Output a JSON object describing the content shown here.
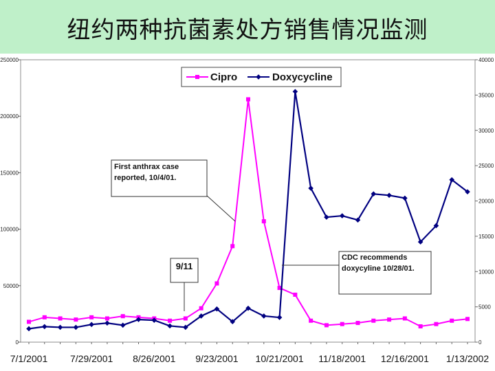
{
  "slide": {
    "title": "纽约两种抗菌素处方销售情况监测",
    "title_band_color": "#bff0c9"
  },
  "chart_data": {
    "type": "line",
    "x_tick_labels": [
      "7/1/2001",
      "7/29/2001",
      "8/26/2001",
      "9/23/2001",
      "10/21/2001",
      "11/18/2001",
      "12/16/2001",
      "1/13/2002"
    ],
    "y_left": {
      "ylim": [
        0,
        250000
      ],
      "ticks": [
        0,
        50000,
        100000,
        150000,
        200000,
        250000
      ]
    },
    "y_right": {
      "ylim": [
        0,
        40000
      ],
      "ticks": [
        0,
        5000,
        10000,
        15000,
        20000,
        25000,
        30000,
        35000,
        40000
      ]
    },
    "x_dates": [
      "7/1/2001",
      "7/8/2001",
      "7/15/2001",
      "7/22/2001",
      "7/29/2001",
      "8/5/2001",
      "8/12/2001",
      "8/19/2001",
      "8/26/2001",
      "9/2/2001",
      "9/9/2001",
      "9/16/2001",
      "9/23/2001",
      "9/30/2001",
      "10/7/2001",
      "10/14/2001",
      "10/21/2001",
      "10/28/2001",
      "11/4/2001",
      "11/11/2001",
      "11/18/2001",
      "11/25/2001",
      "12/2/2001",
      "12/9/2001",
      "12/16/2001",
      "12/23/2001",
      "12/30/2001",
      "1/6/2002",
      "1/13/2002"
    ],
    "series": [
      {
        "name": "Cipro",
        "axis": "left",
        "color": "#ff00ff",
        "marker": "square",
        "values": [
          18000,
          22000,
          21000,
          20000,
          22000,
          21000,
          23000,
          22000,
          21000,
          19000,
          21000,
          30000,
          52000,
          85000,
          215000,
          107000,
          48000,
          42000,
          19000,
          15000,
          16000,
          17000,
          19000,
          20000,
          21000,
          14000,
          16000,
          19000,
          20500
        ]
      },
      {
        "name": "Doxycycline",
        "axis": "right",
        "color": "#000080",
        "marker": "diamond",
        "values": [
          1900,
          2200,
          2100,
          2100,
          2500,
          2700,
          2400,
          3200,
          3100,
          2300,
          2100,
          3700,
          4700,
          2900,
          4800,
          3700,
          3500,
          35500,
          21800,
          17700,
          17900,
          17300,
          21000,
          20800,
          20400,
          14200,
          16500,
          23000,
          21300
        ]
      }
    ],
    "annotations": [
      {
        "text": "First anthrax case reported, 10/4/01.",
        "lines": [
          "First anthrax case",
          "reported, 10/4/01."
        ]
      },
      {
        "text": "9/11"
      },
      {
        "text": "CDC recommends doxycyline 10/28/01.",
        "lines": [
          "CDC recommends",
          "doxycyline 10/28/01."
        ]
      }
    ],
    "legend_placement": "top-center",
    "grid": false
  }
}
